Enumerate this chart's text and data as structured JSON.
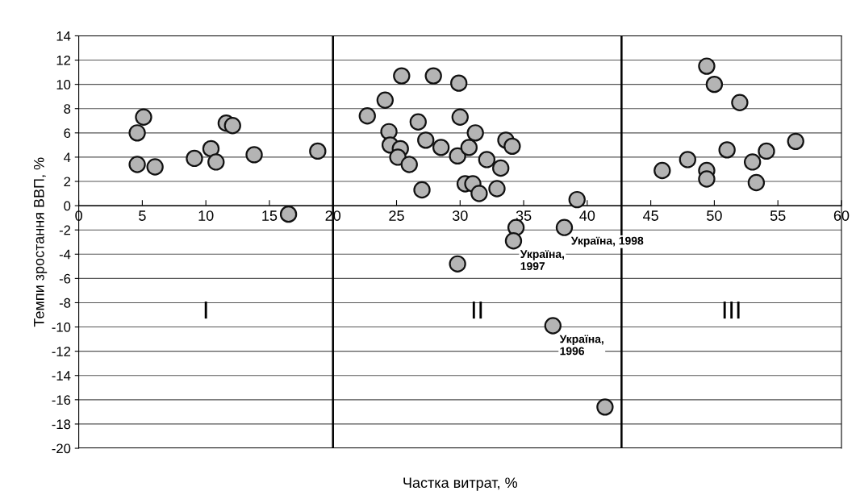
{
  "chart_data": {
    "type": "scatter",
    "xlabel": "Частка витрат, %",
    "ylabel": "Темпи зростання ВВП, %",
    "xlim": [
      0,
      60
    ],
    "xticks": [
      0,
      5,
      10,
      15,
      20,
      25,
      30,
      35,
      40,
      45,
      50,
      55,
      60
    ],
    "ylim": [
      -20,
      14
    ],
    "yticks": [
      -20,
      -18,
      -16,
      -14,
      -12,
      -10,
      -8,
      -6,
      -4,
      -2,
      0,
      2,
      4,
      6,
      8,
      10,
      12,
      14
    ],
    "grid": "y",
    "marker": "circle",
    "legend": false,
    "series": [
      {
        "color": "#b4b4b4",
        "x": [
          4.6,
          5.1,
          4.6,
          6.0,
          9.1,
          10.4,
          10.8,
          11.6,
          12.1,
          13.8,
          16.5,
          18.8,
          22.7,
          24.1,
          25.4,
          27.9,
          29.9,
          24.4,
          24.5,
          25.3,
          25.1,
          26.0,
          26.7,
          27.3,
          27.0,
          28.5,
          29.8,
          30.0,
          30.7,
          31.2,
          30.4,
          31.0,
          31.5,
          32.1,
          32.9,
          33.2,
          33.6,
          34.1,
          39.2,
          29.8,
          34.4,
          34.2,
          38.2,
          37.3,
          41.4,
          45.9,
          47.9,
          49.4,
          50.0,
          52.0,
          49.4,
          49.4,
          51.0,
          53.0,
          53.3,
          54.1,
          56.4
        ],
        "values": [
          6.0,
          7.3,
          3.4,
          3.2,
          3.9,
          4.7,
          3.6,
          6.8,
          6.6,
          4.2,
          -0.7,
          4.5,
          7.4,
          8.7,
          10.7,
          10.7,
          10.1,
          6.1,
          5.0,
          4.7,
          4.0,
          3.4,
          6.9,
          5.4,
          1.3,
          4.8,
          4.1,
          7.3,
          4.8,
          6.0,
          1.8,
          1.8,
          1.0,
          3.8,
          1.4,
          3.1,
          5.4,
          4.9,
          0.5,
          -4.8,
          -1.8,
          -2.9,
          -1.8,
          -9.9,
          -16.6,
          2.9,
          3.8,
          11.5,
          10.0,
          8.5,
          2.9,
          2.2,
          4.6,
          3.6,
          1.9,
          4.5,
          5.3
        ]
      }
    ],
    "ref_lines": [
      {
        "axis": "x",
        "value": 20,
        "color": "#000000"
      },
      {
        "axis": "x",
        "value": 42.7,
        "color": "#000000"
      }
    ],
    "annotations": [
      "I",
      "II",
      "III",
      {
        "text": "Україна, 1998",
        "x": 38.2,
        "y": -1.8
      },
      {
        "text": "Україна,\n1997",
        "x": 34.2,
        "y": -2.9
      },
      {
        "text": "Україна,\n1996",
        "x": 37.3,
        "y": -9.9
      }
    ]
  }
}
